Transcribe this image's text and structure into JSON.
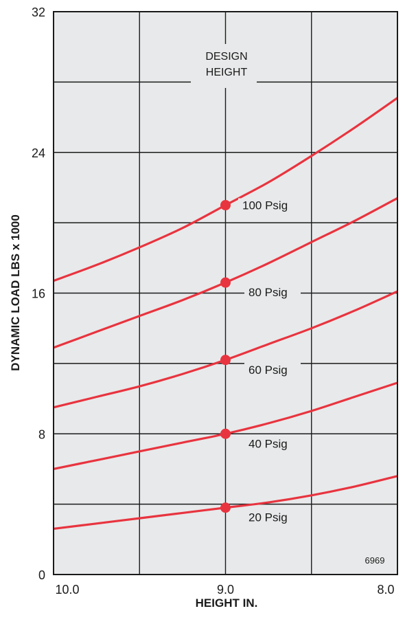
{
  "chart_data": {
    "type": "line",
    "title": "",
    "xlabel": "HEIGHT IN.",
    "ylabel": "DYNAMIC LOAD LBS x 1000",
    "xlim": [
      10.0,
      8.0
    ],
    "ylim": [
      0,
      32
    ],
    "x_ticks": [
      10.0,
      9.0,
      8.0
    ],
    "x_tick_labels": [
      "10.0",
      "9.0",
      "8.0"
    ],
    "y_ticks": [
      0,
      8,
      16,
      24,
      32
    ],
    "y_tick_labels": [
      "0",
      "8",
      "16",
      "24",
      "32"
    ],
    "grid": true,
    "design_height": 9.0,
    "design_label_line1": "DESIGN",
    "design_label_line2": "HEIGHT",
    "code": "6969",
    "series": [
      {
        "name": "100 Psig",
        "x": [
          10.0,
          9.75,
          9.5,
          9.25,
          9.0,
          8.75,
          8.5,
          8.25,
          8.0
        ],
        "values": [
          16.7,
          17.6,
          18.6,
          19.7,
          21.0,
          22.3,
          23.8,
          25.4,
          27.1
        ]
      },
      {
        "name": "80 Psig",
        "x": [
          10.0,
          9.75,
          9.5,
          9.25,
          9.0,
          8.75,
          8.5,
          8.25,
          8.0
        ],
        "values": [
          12.9,
          13.8,
          14.7,
          15.6,
          16.6,
          17.7,
          18.9,
          20.1,
          21.4
        ]
      },
      {
        "name": "60 Psig",
        "x": [
          10.0,
          9.75,
          9.5,
          9.25,
          9.0,
          8.75,
          8.5,
          8.25,
          8.0
        ],
        "values": [
          9.5,
          10.1,
          10.7,
          11.4,
          12.2,
          13.1,
          14.0,
          15.0,
          16.1
        ]
      },
      {
        "name": "40 Psig",
        "x": [
          10.0,
          9.75,
          9.5,
          9.25,
          9.0,
          8.75,
          8.5,
          8.25,
          8.0
        ],
        "values": [
          6.0,
          6.5,
          7.0,
          7.5,
          8.0,
          8.6,
          9.3,
          10.1,
          10.9
        ]
      },
      {
        "name": "20 Psig",
        "x": [
          10.0,
          9.75,
          9.5,
          9.25,
          9.0,
          8.75,
          8.5,
          8.25,
          8.0
        ],
        "values": [
          2.6,
          2.9,
          3.2,
          3.5,
          3.8,
          4.1,
          4.5,
          5.0,
          5.6
        ]
      }
    ],
    "markers_at": 9.0,
    "colors": {
      "line": "#e8343f",
      "background": "#e8e9ea",
      "grid": "#1a1a1a",
      "text": "#1a1a1a"
    }
  }
}
